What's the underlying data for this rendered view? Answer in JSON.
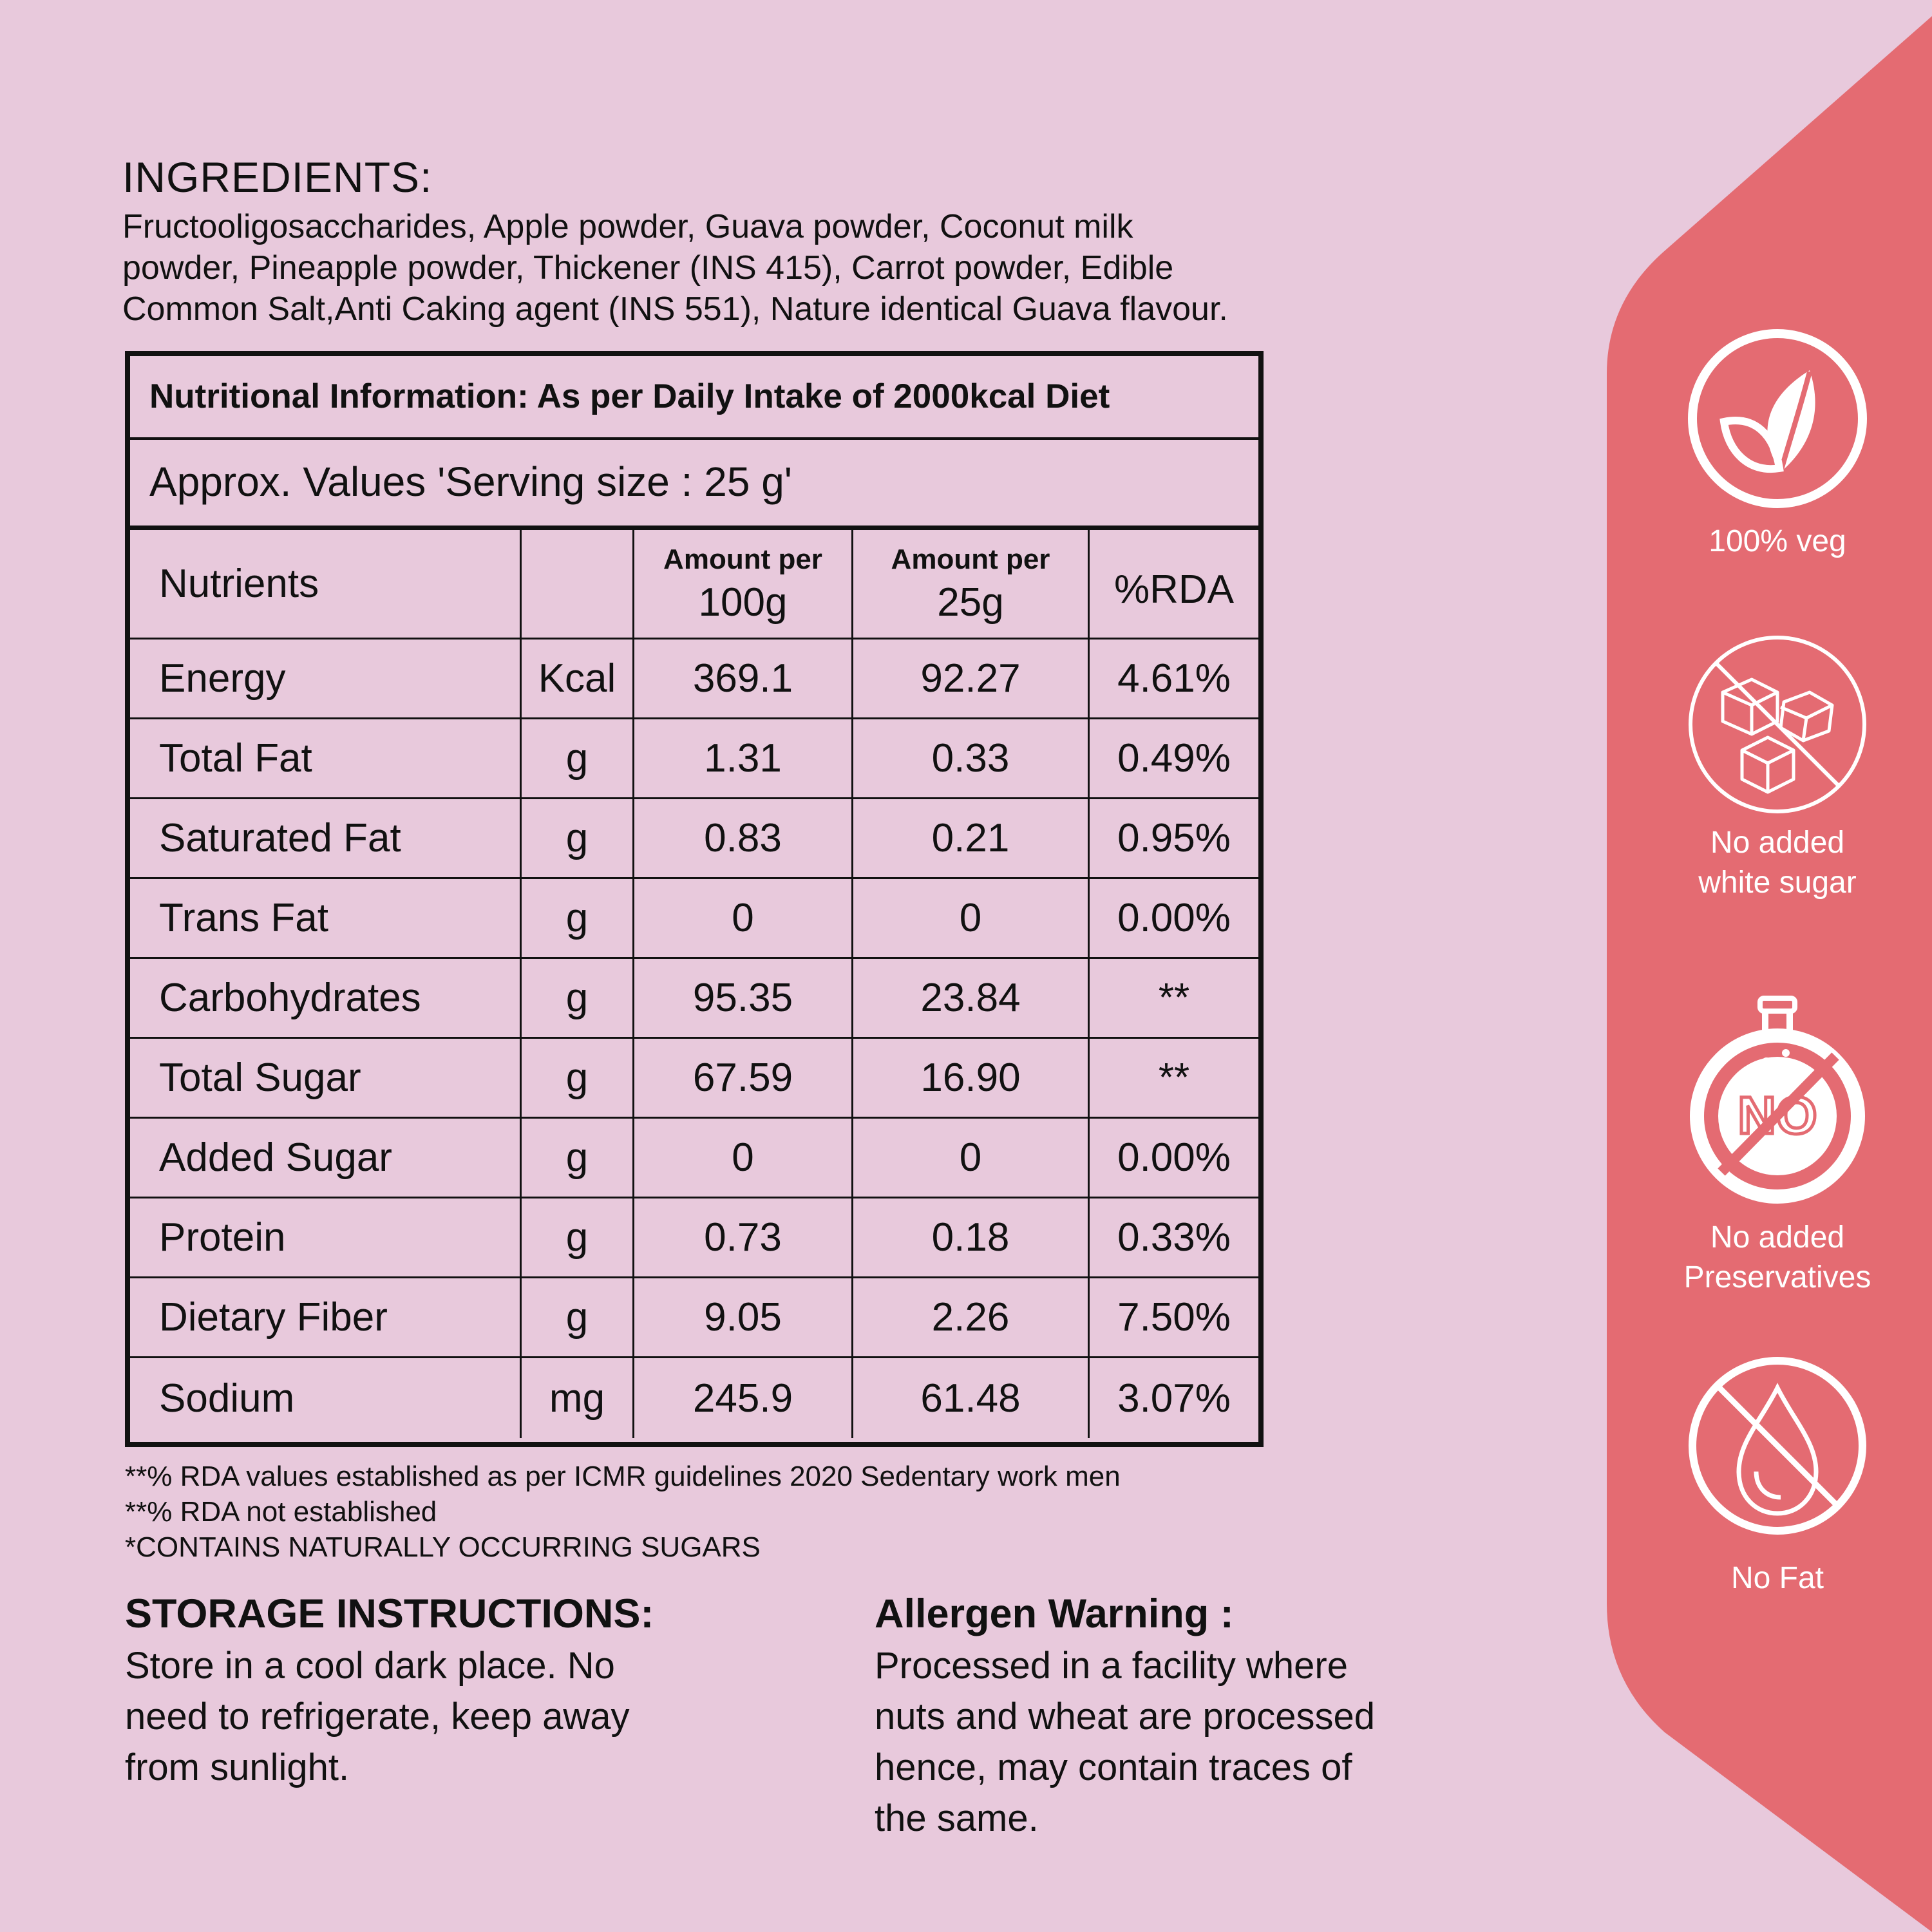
{
  "ingredients": {
    "title": "INGREDIENTS:",
    "line1": "Fructooligosaccharides, Apple powder, Guava powder, Coconut milk",
    "line2": "powder, Pineapple powder, Thickener (INS 415), Carrot powder, Edible",
    "line3": "Common Salt,Anti Caking agent (INS 551), Nature identical Guava flavour."
  },
  "nutrition": {
    "title": "Nutritional Information: As per Daily Intake of 2000kcal Diet",
    "subtitle": "Approx. Values 'Serving size : 25 g'",
    "columns": {
      "nutrients": "Nutrients",
      "per100_top": "Amount per",
      "per100_bottom": "100g",
      "per25_top": "Amount per",
      "per25_bottom": "25g",
      "rda": "%RDA"
    },
    "rows": [
      {
        "name": "Energy",
        "unit": "Kcal",
        "per100": "369.1",
        "per25": "92.27",
        "rda": "4.61%"
      },
      {
        "name": "Total Fat",
        "unit": "g",
        "per100": "1.31",
        "per25": "0.33",
        "rda": "0.49%"
      },
      {
        "name": "Saturated Fat",
        "unit": "g",
        "per100": "0.83",
        "per25": "0.21",
        "rda": "0.95%"
      },
      {
        "name": "Trans Fat",
        "unit": "g",
        "per100": "0",
        "per25": "0",
        "rda": "0.00%"
      },
      {
        "name": "Carbohydrates",
        "unit": "g",
        "per100": "95.35",
        "per25": "23.84",
        "rda": "**"
      },
      {
        "name": "Total Sugar",
        "unit": "g",
        "per100": "67.59",
        "per25": "16.90",
        "rda": "**"
      },
      {
        "name": "Added Sugar",
        "unit": "g",
        "per100": "0",
        "per25": "0",
        "rda": "0.00%"
      },
      {
        "name": "Protein",
        "unit": "g",
        "per100": "0.73",
        "per25": "0.18",
        "rda": "0.33%"
      },
      {
        "name": "Dietary Fiber",
        "unit": "g",
        "per100": "9.05",
        "per25": "2.26",
        "rda": "7.50%"
      },
      {
        "name": "Sodium",
        "unit": "mg",
        "per100": "245.9",
        "per25": "61.48",
        "rda": "3.07%"
      }
    ]
  },
  "footnotes": [
    "**% RDA values established as per ICMR guidelines 2020 Sedentary work men",
    "**% RDA not established",
    "*CONTAINS NATURALLY OCCURRING SUGARS"
  ],
  "storage": {
    "title": "STORAGE INSTRUCTIONS:",
    "line1": "Store in a cool dark place. No",
    "line2": "need to refrigerate, keep away",
    "line3": "from sunlight."
  },
  "allergen": {
    "title": "Allergen Warning :",
    "line1": "Processed in a facility where",
    "line2": "nuts and wheat are processed",
    "line3": "hence, may contain traces of",
    "line4": "the same."
  },
  "badges": [
    {
      "label": "100% veg",
      "icon": "leaf-icon"
    },
    {
      "label": "No added\n white  sugar",
      "icon": "no-sugar-cubes-icon"
    },
    {
      "label": "No added\nPreservatives",
      "icon": "no-preservatives-flask-icon",
      "icon_text": "NO"
    },
    {
      "label": "No Fat",
      "icon": "no-fat-drop-icon"
    }
  ],
  "colors": {
    "background": "#e8c9dc",
    "panel": "#e46b72",
    "text": "#111111",
    "icon": "#ffffff"
  }
}
